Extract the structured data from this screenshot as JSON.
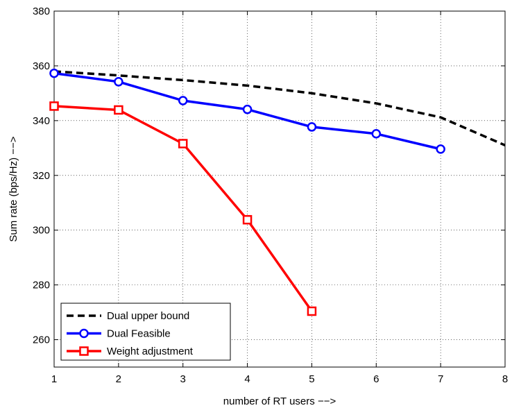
{
  "chart_data": {
    "type": "line",
    "xlabel": "number of RT users −−>",
    "ylabel": "Sum rate (bps/Hz)   −−>",
    "xlim": [
      1,
      8
    ],
    "ylim": [
      250,
      380
    ],
    "xticks": [
      1,
      2,
      3,
      4,
      5,
      6,
      7,
      8
    ],
    "yticks": [
      260,
      280,
      300,
      320,
      340,
      360,
      380
    ],
    "grid": true,
    "legend_position": "bottom-left",
    "series": [
      {
        "name": "Dual upper bound",
        "color": "#000000",
        "line_style": "dashed",
        "marker": "none",
        "x": [
          1,
          2,
          3,
          4,
          5,
          6,
          7,
          8
        ],
        "values": [
          358,
          356.5,
          354.8,
          352.8,
          350,
          346.3,
          341.2,
          331
        ]
      },
      {
        "name": "Dual Feasible",
        "color": "#0000ff",
        "line_style": "solid",
        "marker": "circle",
        "x": [
          1,
          2,
          3,
          4,
          5,
          6,
          7
        ],
        "values": [
          357.3,
          354.2,
          347.3,
          344.1,
          337.7,
          335.2,
          329.6
        ]
      },
      {
        "name": "Weight adjustment",
        "color": "#ff0000",
        "line_style": "solid",
        "marker": "square",
        "x": [
          1,
          2,
          3,
          4,
          5
        ],
        "values": [
          345.3,
          343.9,
          331.6,
          303.8,
          270.4
        ]
      }
    ]
  }
}
